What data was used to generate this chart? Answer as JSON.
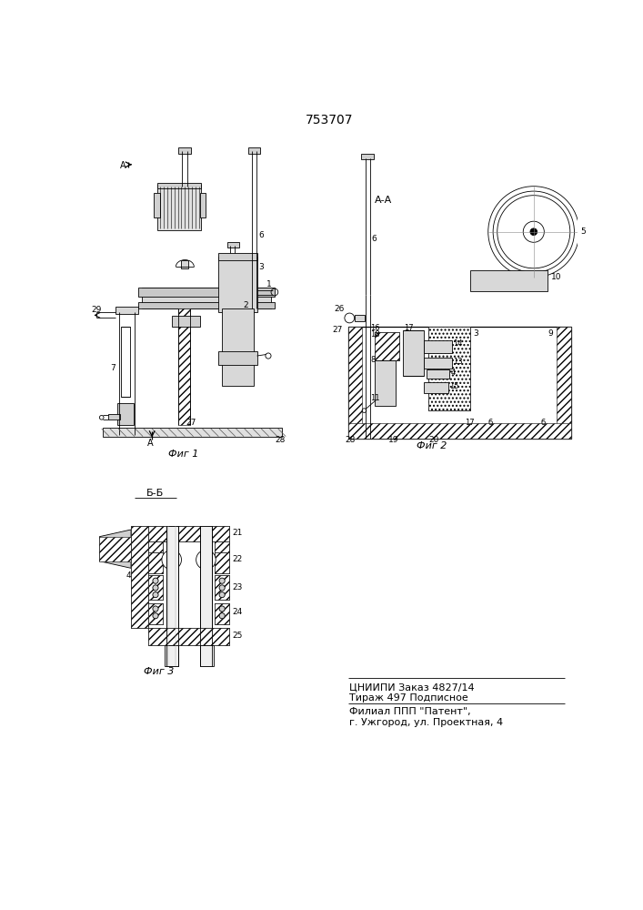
{
  "title": "753707",
  "bg_color": "#ffffff",
  "fig_label1": "Фиг 1",
  "fig_label2": "Фиг 2",
  "fig_label3": "Фиг 3",
  "bottom_text1": "ЦНИИПИ Заказ 4827/14",
  "bottom_text2": "Тираж 497 Подписное",
  "bottom_text3": "Филиал ППП \"Патент\",",
  "bottom_text4": "г. Ужгород, ул. Проектная, 4",
  "section_aa": "А-А",
  "section_bb": "Б-Б"
}
